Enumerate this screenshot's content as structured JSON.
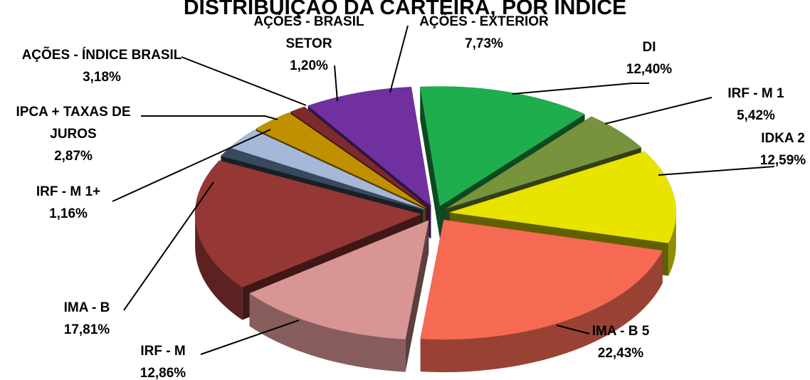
{
  "chart_data": {
    "type": "pie",
    "title": "DISTRIBUIÇÃO DA CARTEIRA, POR ÍNDICE",
    "legend": "none",
    "slices": [
      {
        "label": "DI",
        "value_label": "12,40%",
        "value": 12.4,
        "color": "#1fae4d"
      },
      {
        "label": "IRF - M 1",
        "value_label": "5,42%",
        "value": 5.42,
        "color": "#77933c"
      },
      {
        "label": "IDKA 2",
        "value_label": "12,59%",
        "value": 12.59,
        "color": "#e8e400"
      },
      {
        "label": "IMA - B 5",
        "value_label": "22,43%",
        "value": 22.43,
        "color": "#f66a54"
      },
      {
        "label": "IRF - M",
        "value_label": "12,86%",
        "value": 12.86,
        "color": "#d99594"
      },
      {
        "label": "IMA - B",
        "value_label": "17,81%",
        "value": 17.81,
        "color": "#953735"
      },
      {
        "label": "IRF - M 1+",
        "value_label": "1,16%",
        "value": 1.16,
        "color": "#3a4a5e"
      },
      {
        "label": "IPCA + TAXAS DE JUROS",
        "value_label": "2,87%",
        "value": 2.87,
        "color": "#a5b8d8"
      },
      {
        "label": "AÇÕES - ÍNDICE BRASIL",
        "value_label": "3,18%",
        "value": 3.18,
        "color": "#c09000"
      },
      {
        "label": "AÇÕES - BRASIL SETOR",
        "value_label": "1,20%",
        "value": 1.2,
        "color": "#7f2a2a"
      },
      {
        "label": "AÇÕES - EXTERIOR",
        "value_label": "7,73%",
        "value": 7.73,
        "color": "#7030a0"
      }
    ]
  }
}
